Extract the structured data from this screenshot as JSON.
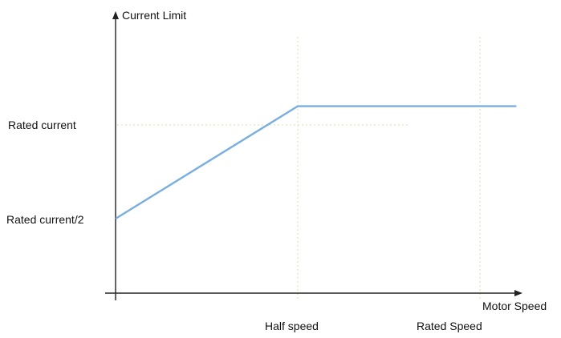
{
  "chart_data": {
    "type": "line",
    "title": "",
    "ylabel": "Current Limit",
    "xlabel": "Motor Speed",
    "x_tick_labels": [
      "Half speed",
      "Rated Speed"
    ],
    "y_tick_labels": [
      "Rated current",
      "Rated current/2"
    ],
    "x_ticks": [
      0.5,
      1.0
    ],
    "y_ticks": [
      1.0,
      0.5
    ],
    "xlim": [
      0,
      1.1
    ],
    "ylim": [
      0,
      1.1
    ],
    "series": [
      {
        "x": [
          0,
          0.5,
          1.1
        ],
        "y": [
          0.5,
          1.1,
          1.1
        ]
      }
    ],
    "grid": "dotted reference lines at tick positions",
    "colors": {
      "line": "#7aaee0",
      "axis": "#222222",
      "guide": "#cfe3a8"
    }
  }
}
